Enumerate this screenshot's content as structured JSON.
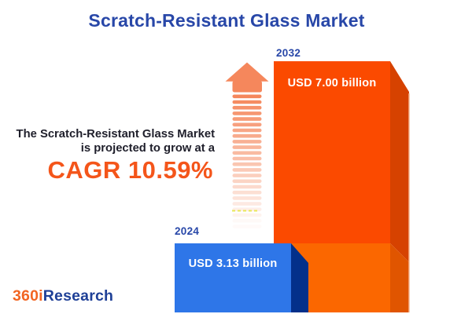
{
  "title": {
    "text": "Scratch-Resistant Glass Market"
  },
  "growth_statement": {
    "line1": "The Scratch-Resistant Glass Market",
    "line2": "is projected to grow at a",
    "cagr": "CAGR 10.59%"
  },
  "bars": {
    "b2024": {
      "year": "2024",
      "value_label": "USD 3.13 billion"
    },
    "b2032": {
      "year": "2032",
      "value_label": "USD 7.00 billion"
    }
  },
  "logo": {
    "prefix": "360i",
    "suffix": "Research"
  },
  "colors": {
    "title_blue": "#2847A8",
    "text_dark": "#1F1F2B",
    "cagr_orange": "#F4551A",
    "arrow_salmon": "#F5875C",
    "guide_yellow": "#E6E63C",
    "blue_front": "#2E76E8",
    "blue_side": "#03308A",
    "orange_front_top": "#FB4A00",
    "orange_front_bottom": "#FB6700",
    "orange_side_top": "#D64200",
    "orange_side_bottom": "#E05500",
    "edge_highlight": "#F5B68E",
    "logo_orange": "#F26522",
    "logo_blue": "#1F4097",
    "value_text": "#FFFFFF",
    "background": "#FFFFFF"
  },
  "arrow": {
    "stripe_count": 24
  },
  "chart_data": {
    "type": "bar",
    "categories": [
      "2024",
      "2032"
    ],
    "values": [
      3.13,
      7.0
    ],
    "unit": "USD billion",
    "value_labels": [
      "USD 3.13 billion",
      "USD 7.00 billion"
    ],
    "series": [
      {
        "name": "Scratch-Resistant Glass Market size",
        "values": [
          3.13,
          7.0
        ]
      }
    ],
    "title": "Scratch-Resistant Glass Market",
    "annotation": "The Scratch-Resistant Glass Market is projected to grow at a CAGR 10.59%",
    "cagr_percent": 10.59,
    "xlabel": "",
    "ylabel": "",
    "grid": false,
    "legend_position": "none",
    "style": "3d-infographic-bars, growth arrow between annotation and bars"
  }
}
